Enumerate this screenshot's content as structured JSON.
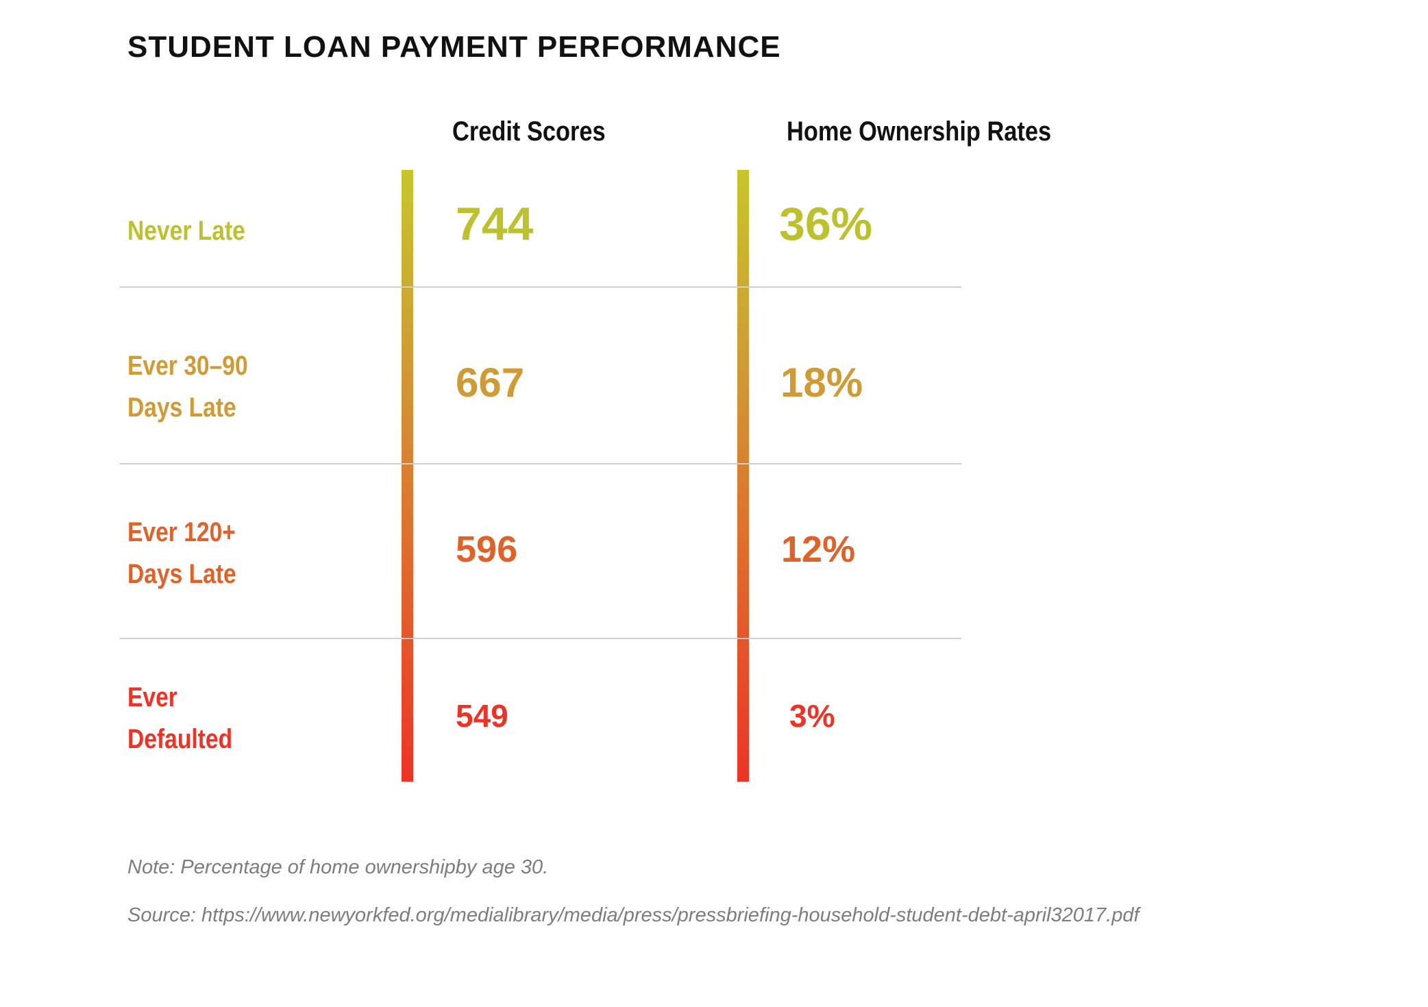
{
  "title": "STUDENT LOAN PAYMENT PERFORMANCE",
  "note": "Note: Percentage of home ownershipby age 30.",
  "source": "Source: https://www.newyorkfed.org/medialibrary/media/press/pressbriefing-household-student-debt-april32017.pdf",
  "colors": {
    "never_late": "#bec12e",
    "ever_30_90": "#d09a35",
    "ever_120": "#df6329",
    "ever_defaulted": "#ed3326"
  },
  "chart_data": {
    "type": "table",
    "title": "STUDENT LOAN PAYMENT PERFORMANCE",
    "columns": [
      "Credit Scores",
      "Home Ownership Rates"
    ],
    "rows": [
      {
        "label": "Never Late",
        "credit_score": "744",
        "home_ownership": "36%",
        "credit_score_value": 744,
        "home_ownership_value": 36,
        "color": "#bec12e"
      },
      {
        "label": "Ever 30–90\nDays Late",
        "credit_score": "667",
        "home_ownership": "18%",
        "credit_score_value": 667,
        "home_ownership_value": 18,
        "color": "#d09a35"
      },
      {
        "label": "Ever 120+\nDays Late",
        "credit_score": "596",
        "home_ownership": "12%",
        "credit_score_value": 596,
        "home_ownership_value": 12,
        "color": "#df6329"
      },
      {
        "label": "Ever\nDefaulted",
        "credit_score": "549",
        "home_ownership": "3%",
        "credit_score_value": 549,
        "home_ownership_value": 3,
        "color": "#ed3326"
      }
    ]
  }
}
